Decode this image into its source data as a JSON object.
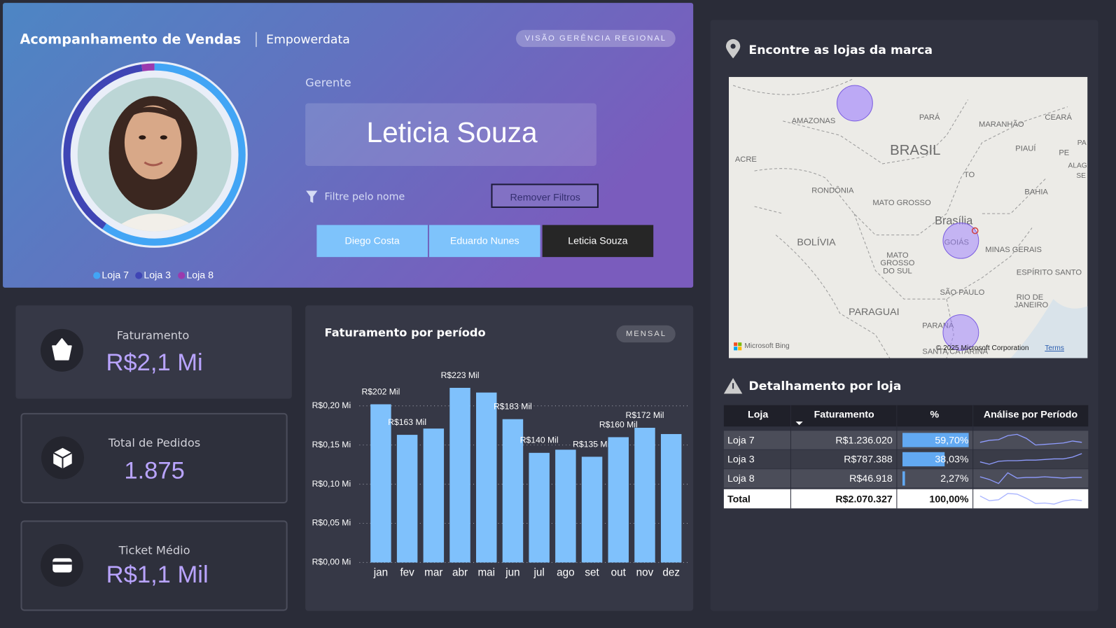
{
  "header": {
    "title": "Acompanhamento de Vendas",
    "subtitle": "Empowerdata",
    "badge": "VISÃO GERÊNCIA REGIONAL"
  },
  "manager": {
    "label": "Gerente",
    "name": "Leticia Souza",
    "filter_label": "Filtre pelo nome",
    "clear_button": "Remover Filtros",
    "options": [
      "Diego Costa",
      "Eduardo Nunes",
      "Leticia Souza"
    ]
  },
  "kpis": [
    {
      "label": "Faturamento",
      "value": "R$2,1 Mi"
    },
    {
      "label": "Total de Pedidos",
      "value": "1.875"
    },
    {
      "label": "Ticket Médio",
      "value": "R$1,1 Mil"
    }
  ],
  "chart_data": {
    "type": "bar",
    "title": "Faturamento por período",
    "badge": "MENSAL",
    "categories": [
      "jan",
      "fev",
      "mar",
      "abr",
      "mai",
      "jun",
      "jul",
      "ago",
      "set",
      "out",
      "nov",
      "dez"
    ],
    "values": [
      0.202,
      0.163,
      0.171,
      0.223,
      0.217,
      0.183,
      0.14,
      0.144,
      0.135,
      0.16,
      0.172,
      0.164
    ],
    "value_labels": [
      "R$202 Mil",
      "R$163 Mil",
      null,
      "R$223 Mil",
      null,
      "R$183 Mil",
      "R$140 Mil",
      null,
      "R$135 Mil",
      "R$160 Mil",
      "R$172 Mil",
      null
    ],
    "color": "#7fc1fc",
    "ylim": [
      0,
      0.23
    ],
    "yticks": [
      {
        "value": 0,
        "label": "R$0,00 Mi"
      },
      {
        "value": 0.05,
        "label": "R$0,05 Mi"
      },
      {
        "value": 0.1,
        "label": "R$0,10 Mi"
      },
      {
        "value": 0.15,
        "label": "R$0,15 Mi"
      },
      {
        "value": 0.2,
        "label": "R$0,20 Mi"
      }
    ],
    "grid": true
  },
  "map": {
    "title": "Encontre as lojas da marca",
    "labels": [
      "AMAZONAS",
      "PARÁ",
      "MARANHÃO",
      "CEARÁ",
      "PIAUÍ",
      "PE",
      "ALAG",
      "SE",
      "PA",
      "BRASIL",
      "ACRE",
      "TO",
      "RONDÔNIA",
      "BAHIA",
      "MATO GROSSO",
      "Brasília",
      "GOIÁS",
      "MINAS GERAIS",
      "BOLÍVIA",
      "MATO",
      "GROSSO",
      "DO SUL",
      "ESPÍRITO SANTO",
      "SÃO PAULO",
      "RIO DE",
      "JANEIRO",
      "PARAGUAI",
      "PARANÁ",
      "SANTA CATARINA"
    ],
    "attribution": [
      "Microsoft Bing",
      "© 2025 Microsoft Corporation",
      "Terms"
    ]
  },
  "detail": {
    "title": "Detalhamento por loja",
    "columns": [
      "Loja",
      "Faturamento",
      "%",
      "Análise por Período"
    ],
    "rows": [
      {
        "store": "Loja 7",
        "revenue": "R$1.236.020",
        "share": 59.7,
        "share_label": "59,70%",
        "color": "#42a5f5",
        "trend": [
          100,
          103,
          104,
          110,
          112,
          106,
          96,
          97,
          98,
          99,
          102,
          100
        ]
      },
      {
        "store": "Loja 3",
        "revenue": "R$787.388",
        "share": 38.03,
        "share_label": "38,03%",
        "color": "#3f45b5",
        "trend": [
          62,
          58,
          63,
          64,
          64,
          65,
          65,
          66,
          67,
          67,
          70,
          76
        ]
      },
      {
        "store": "Loja 8",
        "revenue": "R$46.918",
        "share": 2.27,
        "share_label": "2,27%",
        "color": "#9a3aae",
        "trend": [
          4.0,
          3.6,
          3.0,
          4.6,
          3.8,
          3.9,
          3.9,
          4.0,
          3.9,
          3.8,
          3.9,
          3.9
        ]
      }
    ],
    "total": {
      "store": "Total",
      "revenue": "R$2.070.327",
      "share_label": "100,00%"
    }
  }
}
